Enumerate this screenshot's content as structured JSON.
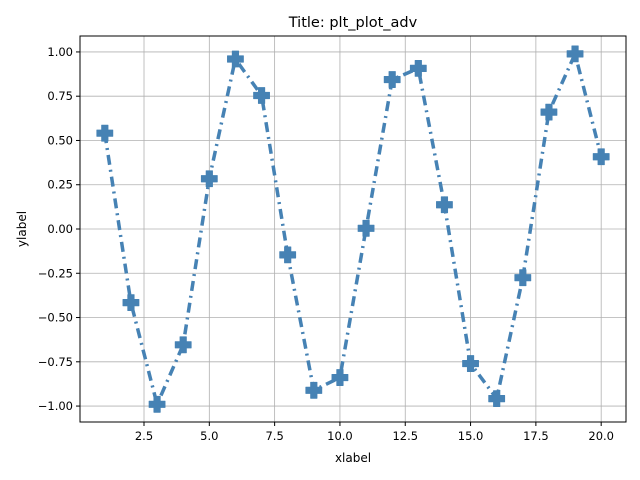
{
  "chart_data": {
    "type": "line",
    "title": "Title: plt_plot_adv",
    "xlabel": "xlabel",
    "ylabel": "ylabel",
    "xlim": [
      0.05,
      20.95
    ],
    "ylim": [
      -1.09,
      1.09
    ],
    "xticks": [
      2.5,
      5.0,
      7.5,
      10.0,
      12.5,
      15.0,
      17.5,
      20.0
    ],
    "xtick_labels": [
      "2.5",
      "5.0",
      "7.5",
      "10.0",
      "12.5",
      "15.0",
      "17.5",
      "20.0"
    ],
    "yticks": [
      -1.0,
      -0.75,
      -0.5,
      -0.25,
      0.0,
      0.25,
      0.5,
      0.75,
      1.0
    ],
    "ytick_labels": [
      "−1.00",
      "−0.75",
      "−0.50",
      "−0.25",
      "0.00",
      "0.25",
      "0.50",
      "0.75",
      "1.00"
    ],
    "grid": true,
    "line_style": "dash-dot",
    "marker": "plus-filled",
    "series": [
      {
        "color": "#4682b4",
        "x": [
          1,
          2,
          3,
          4,
          5,
          6,
          7,
          8,
          9,
          10,
          11,
          12,
          13,
          14,
          15,
          16,
          17,
          18,
          19,
          20
        ],
        "y": [
          0.541,
          -0.416,
          -0.99,
          -0.654,
          0.284,
          0.96,
          0.754,
          -0.146,
          -0.911,
          -0.839,
          0.004,
          0.844,
          0.907,
          0.137,
          -0.76,
          -0.958,
          -0.275,
          0.66,
          0.989,
          0.408
        ]
      }
    ]
  }
}
